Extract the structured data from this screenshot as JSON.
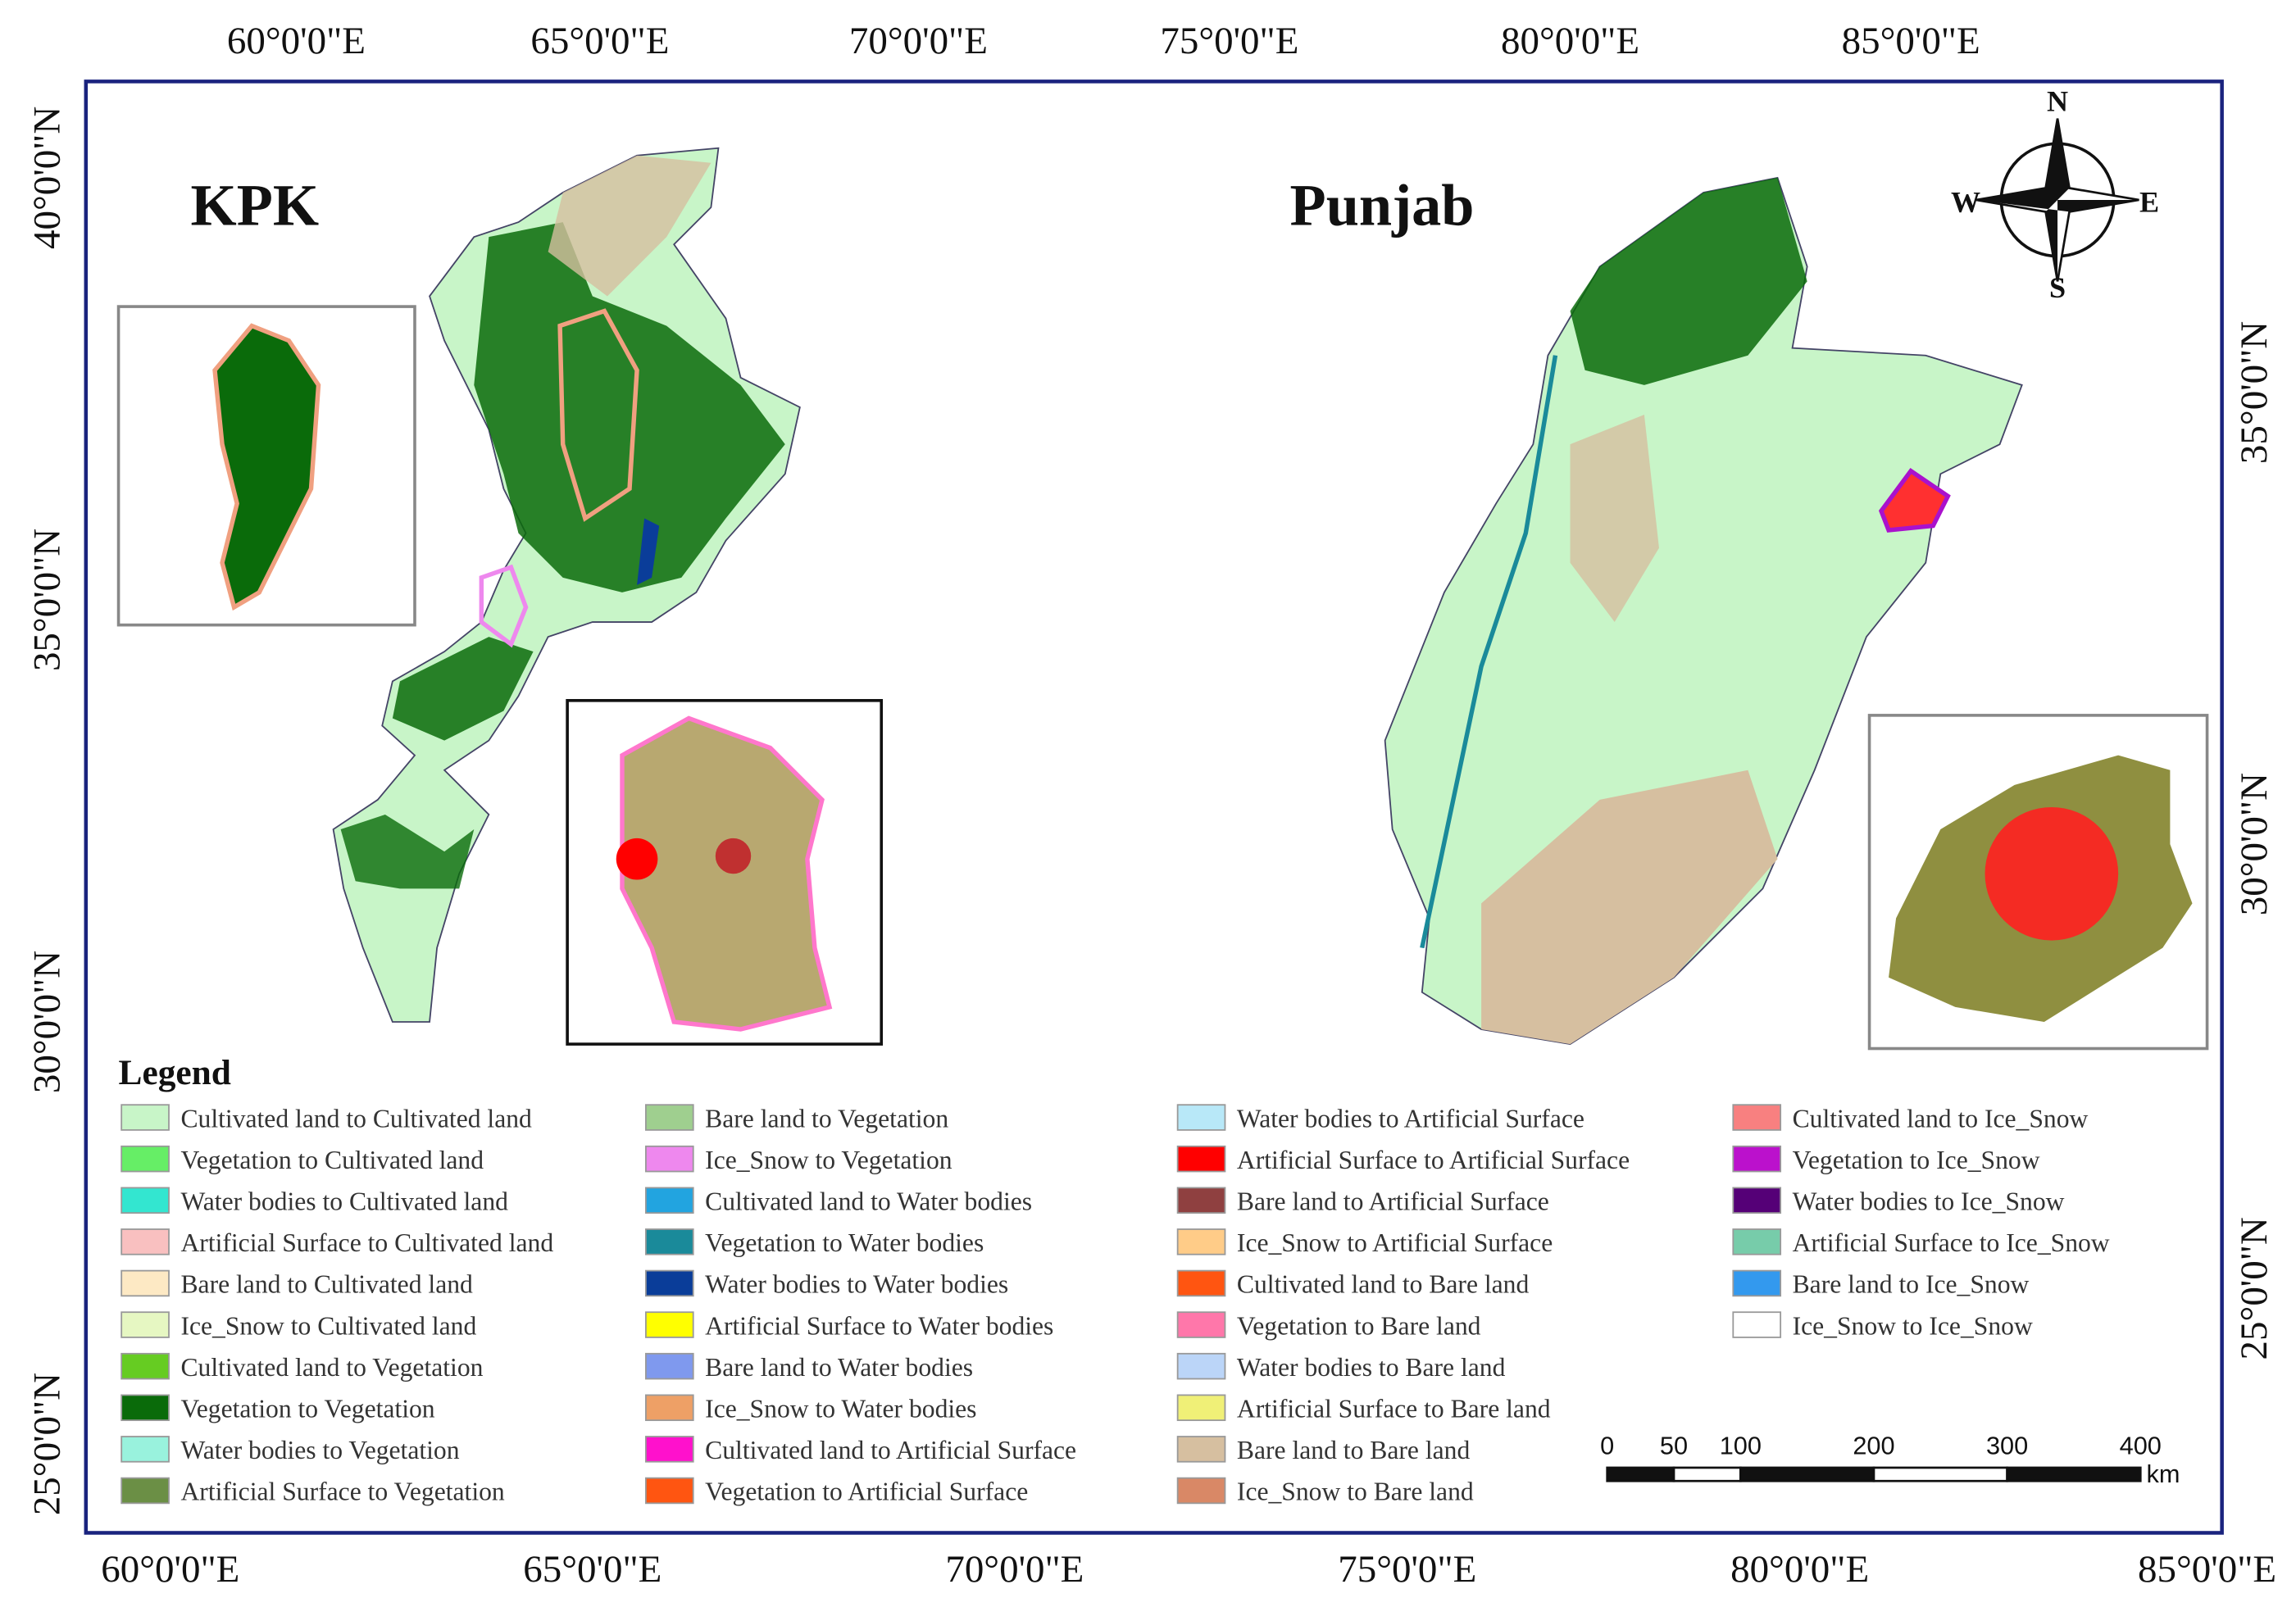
{
  "axes": {
    "top": [
      "60°0'0\"E",
      "65°0'0\"E",
      "70°0'0\"E",
      "75°0'0\"E",
      "80°0'0\"E",
      "85°0'0\"E"
    ],
    "bottom": [
      "60°0'0\"E",
      "65°0'0\"E",
      "70°0'0\"E",
      "75°0'0\"E",
      "80°0'0\"E",
      "85°0'0\"E"
    ],
    "left": [
      "40°0'0\"N",
      "35°0'0\"N",
      "30°0'0\"N",
      "25°0'0\"N"
    ],
    "right": [
      "35°0'0\"N",
      "30°0'0\"N",
      "25°0'0\"N"
    ]
  },
  "titles": {
    "kpk": "KPK",
    "punjab": "Punjab"
  },
  "compass": {
    "n": "N",
    "s": "S",
    "e": "E",
    "w": "W"
  },
  "legend": {
    "title": "Legend",
    "items": [
      {
        "label": "Cultivated land to Cultivated land",
        "color": "#c8f5c8"
      },
      {
        "label": "Vegetation to Cultivated land",
        "color": "#66ee66"
      },
      {
        "label": "Water bodies to Cultivated land",
        "color": "#33e6d0"
      },
      {
        "label": "Artificial Surface to Cultivated land",
        "color": "#f9c0c0"
      },
      {
        "label": "Bare land to Cultivated land",
        "color": "#fde9c4"
      },
      {
        "label": "Ice_Snow to Cultivated land",
        "color": "#e6f7c2"
      },
      {
        "label": "Cultivated land to Vegetation",
        "color": "#66cc22"
      },
      {
        "label": "Vegetation to Vegetation",
        "color": "#0a6b0a"
      },
      {
        "label": "Water bodies to Vegetation",
        "color": "#99f2dd"
      },
      {
        "label": "Artificial Surface to Vegetation",
        "color": "#6b8f45"
      },
      {
        "label": "Bare land to Vegetation",
        "color": "#9fcf8f"
      },
      {
        "label": "Ice_Snow to Vegetation",
        "color": "#ee88ee"
      },
      {
        "label": "Cultivated land to Water bodies",
        "color": "#22a4e0"
      },
      {
        "label": "Vegetation to Water bodies",
        "color": "#1a8a9a"
      },
      {
        "label": "Water bodies to Water bodies",
        "color": "#0a3d99"
      },
      {
        "label": "Artificial Surface to Water bodies",
        "color": "#ffff00"
      },
      {
        "label": "Bare land to Water bodies",
        "color": "#7f99ee"
      },
      {
        "label": "Ice_Snow to Water bodies",
        "color": "#eea066"
      },
      {
        "label": "Cultivated land to Artificial Surface",
        "color": "#ff11cc"
      },
      {
        "label": "Vegetation to Artificial Surface",
        "color": "#ff5511"
      },
      {
        "label": "Water bodies to Artificial Surface",
        "color": "#b8e8f8"
      },
      {
        "label": "Artificial Surface to Artificial Surface",
        "color": "#ff0000"
      },
      {
        "label": "Bare land to Artificial Surface",
        "color": "#8f4040"
      },
      {
        "label": "Ice_Snow to Artificial Surface",
        "color": "#ffcc88"
      },
      {
        "label": "Cultivated land to Bare land",
        "color": "#ff5511"
      },
      {
        "label": "Vegetation to Bare land",
        "color": "#ff77aa"
      },
      {
        "label": "Water bodies to Bare land",
        "color": "#bbd5f8"
      },
      {
        "label": "Artificial Surface to Bare land",
        "color": "#f0f077"
      },
      {
        "label": "Bare land to Bare land",
        "color": "#d6bfa0"
      },
      {
        "label": "Ice_Snow to Bare land",
        "color": "#d98866"
      },
      {
        "label": "Cultivated land to Ice_Snow",
        "color": "#f88080"
      },
      {
        "label": "Vegetation to Ice_Snow",
        "color": "#bb11cc"
      },
      {
        "label": "Water bodies to Ice_Snow",
        "color": "#550077"
      },
      {
        "label": "Artificial Surface to Ice_Snow",
        "color": "#77ccaa"
      },
      {
        "label": "Bare land to Ice_Snow",
        "color": "#3399ee"
      },
      {
        "label": "Ice_Snow to Ice_Snow",
        "color": "#ffffff"
      }
    ]
  },
  "scale_bar": {
    "ticks": [
      0,
      50,
      100,
      200,
      300,
      400
    ],
    "unit": "km"
  }
}
